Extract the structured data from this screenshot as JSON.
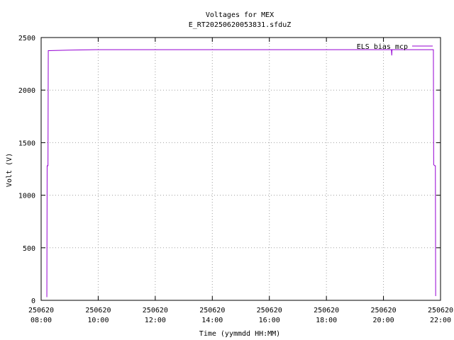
{
  "chart_data": {
    "type": "line",
    "title": "Voltages for MEX",
    "subtitle": "E_RT20250620053831.sfduZ",
    "x_label": "Time (yymmdd HH:MM)",
    "y_label": "Volt (V)",
    "x": [
      8.2,
      8.21,
      8.24,
      8.25,
      9.0,
      9.9,
      20.28,
      20.29,
      20.3,
      21.75,
      21.76,
      21.8,
      21.82,
      21.83
    ],
    "series": [
      {
        "name": "ELS bias mcp",
        "color": "#9400d3",
        "values": [
          30,
          1280,
          1280,
          2375,
          2380,
          2385,
          2385,
          2330,
          2385,
          2385,
          1290,
          1280,
          1280,
          40
        ]
      }
    ],
    "xlim": [
      8,
      22
    ],
    "xticks": [
      {
        "value": 8,
        "label": [
          "250620",
          "08:00"
        ]
      },
      {
        "value": 10,
        "label": [
          "250620",
          "10:00"
        ]
      },
      {
        "value": 12,
        "label": [
          "250620",
          "12:00"
        ]
      },
      {
        "value": 14,
        "label": [
          "250620",
          "14:00"
        ]
      },
      {
        "value": 16,
        "label": [
          "250620",
          "16:00"
        ]
      },
      {
        "value": 18,
        "label": [
          "250620",
          "18:00"
        ]
      },
      {
        "value": 20,
        "label": [
          "250620",
          "20:00"
        ]
      },
      {
        "value": 22,
        "label": [
          "250620",
          "22:00"
        ]
      }
    ],
    "ylim": [
      0,
      2500
    ],
    "yticks": [
      0,
      500,
      1000,
      1500,
      2000,
      2500
    ],
    "grid": true,
    "legend": "top-right"
  }
}
